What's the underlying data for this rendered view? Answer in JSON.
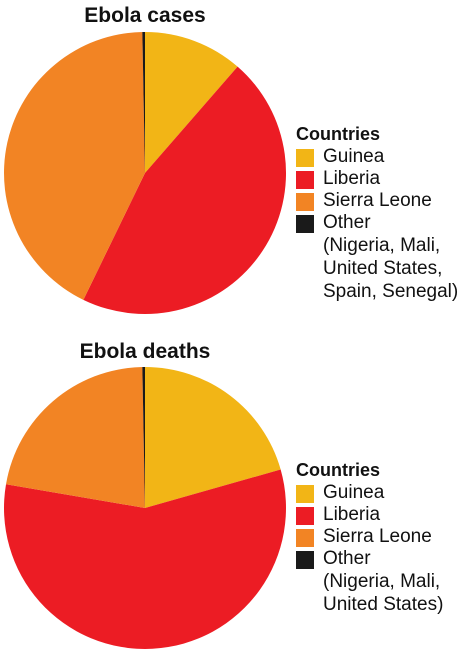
{
  "chart_data": [
    {
      "type": "pie",
      "title": "Ebola cases",
      "legend_title": "Countries",
      "legend_position": "right",
      "categories": [
        "Guinea",
        "Liberia",
        "Sierra Leone",
        "Other"
      ],
      "values": [
        11.4,
        45.8,
        42.5,
        0.3
      ],
      "colors": [
        "#F2B516",
        "#EC1C24",
        "#F28424",
        "#1A1A1A"
      ],
      "other_note": [
        "(Nigeria, Mali,",
        "United States,",
        "Spain, Senegal)"
      ]
    },
    {
      "type": "pie",
      "title": "Ebola deaths",
      "legend_title": "Countries",
      "legend_position": "right",
      "categories": [
        "Guinea",
        "Liberia",
        "Sierra Leone",
        "Other"
      ],
      "values": [
        20.6,
        57.1,
        22.0,
        0.3
      ],
      "colors": [
        "#F2B516",
        "#EC1C24",
        "#F28424",
        "#1A1A1A"
      ],
      "other_note": [
        "(Nigeria, Mali,",
        "United States)"
      ]
    }
  ]
}
